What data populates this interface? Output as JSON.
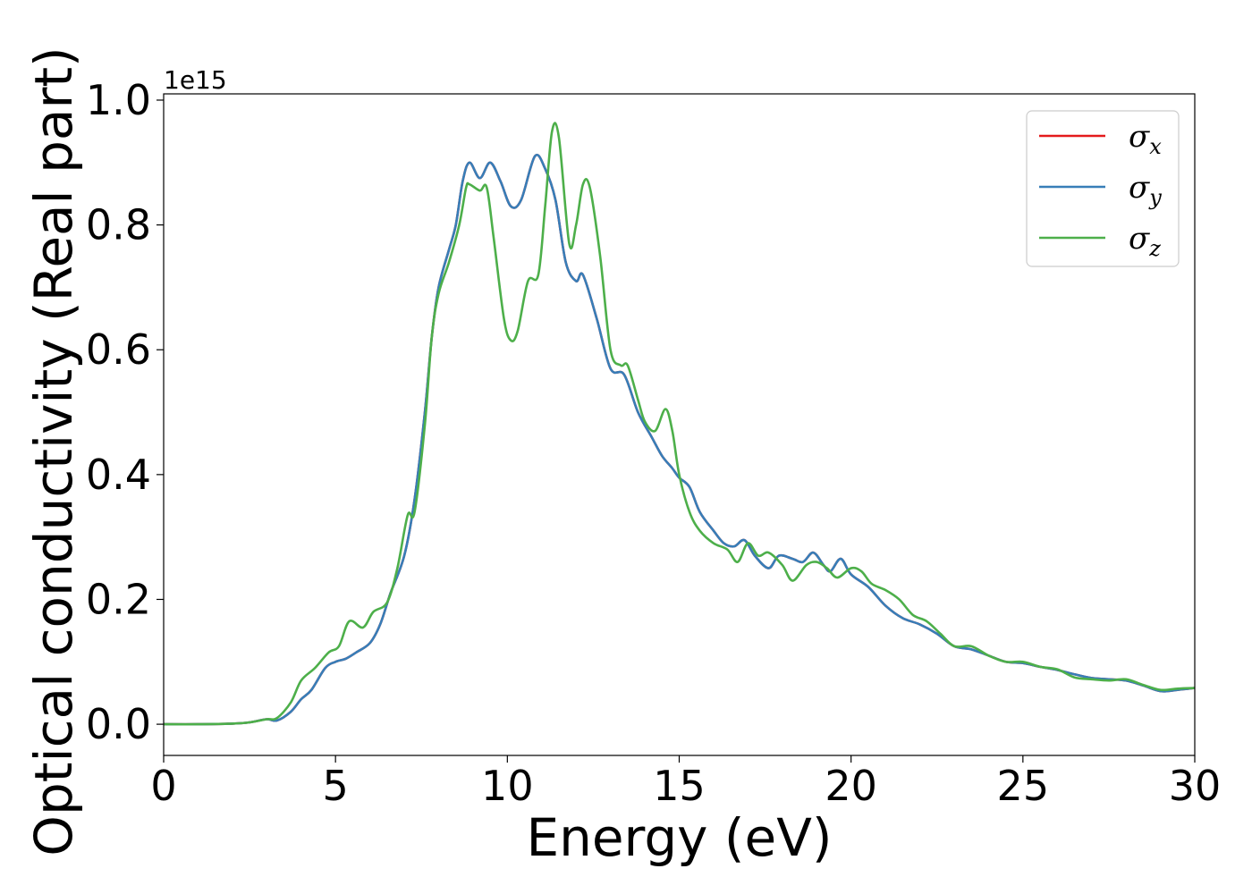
{
  "chart_data": {
    "type": "line",
    "xlabel": "Energy (eV)",
    "ylabel": "Optical conductivity (Real part)",
    "y_offset_label": "1e15",
    "xlim": [
      0,
      30
    ],
    "ylim": [
      -0.05,
      1.01
    ],
    "xticks": [
      "0",
      "5",
      "10",
      "15",
      "20",
      "25",
      "30"
    ],
    "xtick_values": [
      0,
      5,
      10,
      15,
      20,
      25,
      30
    ],
    "yticks": [
      "0.0",
      "0.2",
      "0.4",
      "0.6",
      "0.8",
      "1.0"
    ],
    "ytick_values": [
      0.0,
      0.2,
      0.4,
      0.6,
      0.8,
      1.0
    ],
    "legend_position": "top-right",
    "grid": false,
    "series": [
      {
        "name": "σx",
        "legend_base": "σ",
        "legend_sub": "x",
        "color": "#e41a1c",
        "points": [
          [
            0,
            0
          ],
          [
            1,
            0
          ],
          [
            2,
            0.001
          ],
          [
            2.5,
            0.003
          ],
          [
            3,
            0.008
          ],
          [
            3.3,
            0.006
          ],
          [
            3.7,
            0.02
          ],
          [
            4,
            0.04
          ],
          [
            4.3,
            0.055
          ],
          [
            4.7,
            0.09
          ],
          [
            5,
            0.1
          ],
          [
            5.3,
            0.105
          ],
          [
            5.6,
            0.115
          ],
          [
            6,
            0.13
          ],
          [
            6.3,
            0.16
          ],
          [
            6.6,
            0.21
          ],
          [
            7,
            0.27
          ],
          [
            7.3,
            0.36
          ],
          [
            7.6,
            0.5
          ],
          [
            7.8,
            0.62
          ],
          [
            8,
            0.7
          ],
          [
            8.3,
            0.76
          ],
          [
            8.5,
            0.8
          ],
          [
            8.7,
            0.87
          ],
          [
            8.9,
            0.9
          ],
          [
            9.2,
            0.875
          ],
          [
            9.5,
            0.9
          ],
          [
            9.8,
            0.87
          ],
          [
            10.1,
            0.83
          ],
          [
            10.4,
            0.84
          ],
          [
            10.8,
            0.91
          ],
          [
            11.1,
            0.89
          ],
          [
            11.4,
            0.84
          ],
          [
            11.7,
            0.74
          ],
          [
            12,
            0.71
          ],
          [
            12.2,
            0.72
          ],
          [
            12.6,
            0.65
          ],
          [
            13,
            0.57
          ],
          [
            13.4,
            0.56
          ],
          [
            13.8,
            0.5
          ],
          [
            14.2,
            0.46
          ],
          [
            14.5,
            0.43
          ],
          [
            14.8,
            0.41
          ],
          [
            15,
            0.395
          ],
          [
            15.3,
            0.38
          ],
          [
            15.6,
            0.34
          ],
          [
            16,
            0.31
          ],
          [
            16.3,
            0.29
          ],
          [
            16.6,
            0.285
          ],
          [
            16.9,
            0.295
          ],
          [
            17.2,
            0.27
          ],
          [
            17.6,
            0.25
          ],
          [
            17.9,
            0.27
          ],
          [
            18.3,
            0.265
          ],
          [
            18.6,
            0.26
          ],
          [
            18.9,
            0.275
          ],
          [
            19.2,
            0.255
          ],
          [
            19.4,
            0.245
          ],
          [
            19.7,
            0.265
          ],
          [
            20,
            0.24
          ],
          [
            20.5,
            0.22
          ],
          [
            21,
            0.19
          ],
          [
            21.5,
            0.17
          ],
          [
            22,
            0.16
          ],
          [
            22.5,
            0.145
          ],
          [
            23,
            0.125
          ],
          [
            23.5,
            0.12
          ],
          [
            24,
            0.11
          ],
          [
            24.5,
            0.1
          ],
          [
            25,
            0.098
          ],
          [
            25.5,
            0.092
          ],
          [
            26,
            0.087
          ],
          [
            26.5,
            0.08
          ],
          [
            27,
            0.074
          ],
          [
            27.5,
            0.072
          ],
          [
            28,
            0.07
          ],
          [
            28.5,
            0.062
          ],
          [
            29,
            0.053
          ],
          [
            29.5,
            0.055
          ],
          [
            30,
            0.058
          ]
        ]
      },
      {
        "name": "σy",
        "legend_base": "σ",
        "legend_sub": "y",
        "color": "#377eb8",
        "points": [
          [
            0,
            0
          ],
          [
            1,
            0
          ],
          [
            2,
            0.001
          ],
          [
            2.5,
            0.003
          ],
          [
            3,
            0.008
          ],
          [
            3.3,
            0.006
          ],
          [
            3.7,
            0.02
          ],
          [
            4,
            0.04
          ],
          [
            4.3,
            0.055
          ],
          [
            4.7,
            0.09
          ],
          [
            5,
            0.1
          ],
          [
            5.3,
            0.105
          ],
          [
            5.6,
            0.115
          ],
          [
            6,
            0.13
          ],
          [
            6.3,
            0.16
          ],
          [
            6.6,
            0.21
          ],
          [
            7,
            0.27
          ],
          [
            7.3,
            0.36
          ],
          [
            7.6,
            0.5
          ],
          [
            7.8,
            0.62
          ],
          [
            8,
            0.7
          ],
          [
            8.3,
            0.76
          ],
          [
            8.5,
            0.8
          ],
          [
            8.7,
            0.87
          ],
          [
            8.9,
            0.9
          ],
          [
            9.2,
            0.875
          ],
          [
            9.5,
            0.9
          ],
          [
            9.8,
            0.87
          ],
          [
            10.1,
            0.83
          ],
          [
            10.4,
            0.84
          ],
          [
            10.8,
            0.91
          ],
          [
            11.1,
            0.89
          ],
          [
            11.4,
            0.84
          ],
          [
            11.7,
            0.74
          ],
          [
            12,
            0.71
          ],
          [
            12.2,
            0.72
          ],
          [
            12.6,
            0.65
          ],
          [
            13,
            0.57
          ],
          [
            13.4,
            0.56
          ],
          [
            13.8,
            0.5
          ],
          [
            14.2,
            0.46
          ],
          [
            14.5,
            0.43
          ],
          [
            14.8,
            0.41
          ],
          [
            15,
            0.395
          ],
          [
            15.3,
            0.38
          ],
          [
            15.6,
            0.34
          ],
          [
            16,
            0.31
          ],
          [
            16.3,
            0.29
          ],
          [
            16.6,
            0.285
          ],
          [
            16.9,
            0.295
          ],
          [
            17.2,
            0.27
          ],
          [
            17.6,
            0.25
          ],
          [
            17.9,
            0.27
          ],
          [
            18.3,
            0.265
          ],
          [
            18.6,
            0.26
          ],
          [
            18.9,
            0.275
          ],
          [
            19.2,
            0.255
          ],
          [
            19.4,
            0.245
          ],
          [
            19.7,
            0.265
          ],
          [
            20,
            0.24
          ],
          [
            20.5,
            0.22
          ],
          [
            21,
            0.19
          ],
          [
            21.5,
            0.17
          ],
          [
            22,
            0.16
          ],
          [
            22.5,
            0.145
          ],
          [
            23,
            0.125
          ],
          [
            23.5,
            0.12
          ],
          [
            24,
            0.11
          ],
          [
            24.5,
            0.1
          ],
          [
            25,
            0.098
          ],
          [
            25.5,
            0.092
          ],
          [
            26,
            0.087
          ],
          [
            26.5,
            0.08
          ],
          [
            27,
            0.074
          ],
          [
            27.5,
            0.072
          ],
          [
            28,
            0.07
          ],
          [
            28.5,
            0.062
          ],
          [
            29,
            0.053
          ],
          [
            29.5,
            0.055
          ],
          [
            30,
            0.058
          ]
        ]
      },
      {
        "name": "σz",
        "legend_base": "σ",
        "legend_sub": "z",
        "color": "#4daf4a",
        "points": [
          [
            0,
            0
          ],
          [
            1,
            0
          ],
          [
            2,
            0.001
          ],
          [
            2.5,
            0.003
          ],
          [
            3,
            0.008
          ],
          [
            3.3,
            0.01
          ],
          [
            3.7,
            0.035
          ],
          [
            4,
            0.07
          ],
          [
            4.4,
            0.09
          ],
          [
            4.8,
            0.115
          ],
          [
            5.1,
            0.125
          ],
          [
            5.4,
            0.165
          ],
          [
            5.8,
            0.155
          ],
          [
            6.1,
            0.18
          ],
          [
            6.5,
            0.195
          ],
          [
            6.8,
            0.25
          ],
          [
            7.1,
            0.335
          ],
          [
            7.3,
            0.34
          ],
          [
            7.6,
            0.48
          ],
          [
            7.8,
            0.62
          ],
          [
            8,
            0.69
          ],
          [
            8.3,
            0.74
          ],
          [
            8.6,
            0.8
          ],
          [
            8.8,
            0.86
          ],
          [
            8.9,
            0.865
          ],
          [
            9.2,
            0.855
          ],
          [
            9.4,
            0.86
          ],
          [
            9.6,
            0.78
          ],
          [
            9.9,
            0.65
          ],
          [
            10.1,
            0.615
          ],
          [
            10.3,
            0.63
          ],
          [
            10.6,
            0.71
          ],
          [
            10.9,
            0.72
          ],
          [
            11.1,
            0.83
          ],
          [
            11.3,
            0.95
          ],
          [
            11.5,
            0.94
          ],
          [
            11.8,
            0.77
          ],
          [
            12,
            0.8
          ],
          [
            12.2,
            0.865
          ],
          [
            12.4,
            0.86
          ],
          [
            12.7,
            0.75
          ],
          [
            13,
            0.6
          ],
          [
            13.3,
            0.575
          ],
          [
            13.5,
            0.575
          ],
          [
            13.8,
            0.52
          ],
          [
            14,
            0.485
          ],
          [
            14.3,
            0.47
          ],
          [
            14.6,
            0.505
          ],
          [
            14.8,
            0.47
          ],
          [
            15,
            0.4
          ],
          [
            15.3,
            0.34
          ],
          [
            15.6,
            0.31
          ],
          [
            16,
            0.29
          ],
          [
            16.4,
            0.28
          ],
          [
            16.7,
            0.26
          ],
          [
            17,
            0.29
          ],
          [
            17.3,
            0.27
          ],
          [
            17.6,
            0.275
          ],
          [
            18,
            0.255
          ],
          [
            18.3,
            0.23
          ],
          [
            18.7,
            0.255
          ],
          [
            19,
            0.26
          ],
          [
            19.3,
            0.25
          ],
          [
            19.6,
            0.235
          ],
          [
            20,
            0.25
          ],
          [
            20.3,
            0.245
          ],
          [
            20.6,
            0.225
          ],
          [
            21,
            0.215
          ],
          [
            21.4,
            0.2
          ],
          [
            21.8,
            0.175
          ],
          [
            22.2,
            0.165
          ],
          [
            22.6,
            0.145
          ],
          [
            23,
            0.125
          ],
          [
            23.5,
            0.125
          ],
          [
            24,
            0.11
          ],
          [
            24.5,
            0.1
          ],
          [
            25,
            0.1
          ],
          [
            25.5,
            0.092
          ],
          [
            26,
            0.088
          ],
          [
            26.5,
            0.075
          ],
          [
            27,
            0.072
          ],
          [
            27.5,
            0.07
          ],
          [
            28,
            0.072
          ],
          [
            28.5,
            0.063
          ],
          [
            29,
            0.055
          ],
          [
            29.5,
            0.057
          ],
          [
            30,
            0.058
          ]
        ]
      }
    ]
  }
}
